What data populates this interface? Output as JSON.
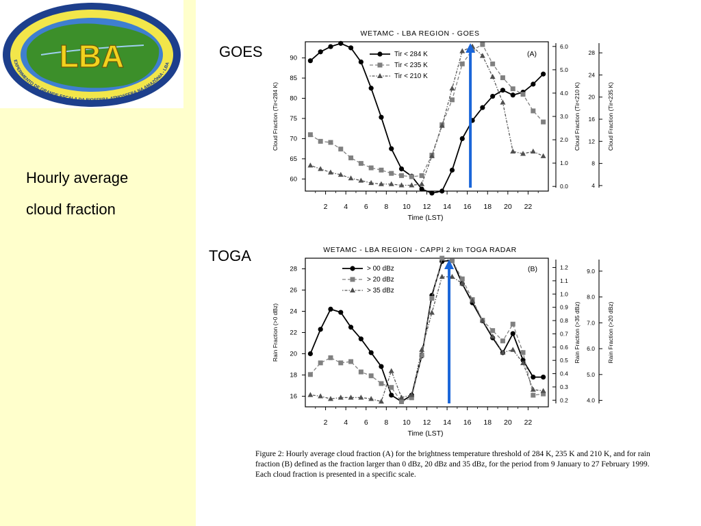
{
  "sidebar": {
    "logo_text": "LBA",
    "logo_ring_text": "EXPERIMENTO DE GRANDE ESCALA DA BIOSFERA-ATMOSFERA NA AMAZÔNIA - LBA",
    "heading_line1": "Hourly average",
    "heading_line2": "cloud fraction"
  },
  "labels": {
    "goes": "GOES",
    "toga": "TOGA"
  },
  "caption": "Figure 2: Hourly average cloud fraction (A) for the brightness temperature threshold of 284 K, 235 K and 210 K, and for rain fraction (B) defined as the fraction larger than 0 dBz, 20 dBz and 35 dBz, for the period from 9 January to 27 February 1999. Each cloud fraction is presented in a specific scale.",
  "colors": {
    "sidebar_bg": "#ffffcc",
    "arrow": "#1a66d9",
    "series1": "#000000",
    "series2": "#808080",
    "series3": "#606060"
  },
  "chart_data": [
    {
      "type": "line",
      "title": "WETAMC - LBA REGION - GOES",
      "panel_label": "(A)",
      "xlabel": "Time (LST)",
      "xlim": [
        0,
        24
      ],
      "xticks": [
        2,
        4,
        6,
        8,
        10,
        12,
        14,
        16,
        18,
        20,
        22
      ],
      "axes": [
        {
          "id": "left",
          "label": "Cloud Fraction (Tir<284 K)",
          "lim": [
            57,
            94
          ],
          "ticks": [
            60,
            65,
            70,
            75,
            80,
            85,
            90
          ],
          "tick_labels": [
            "60",
            "65",
            "70",
            "75",
            "80",
            "85",
            "90"
          ]
        },
        {
          "id": "mid",
          "label": "Cloud Fraction (Tir<210 K)",
          "lim": [
            -0.2,
            6.2
          ],
          "ticks": [
            0,
            1,
            2,
            3,
            4,
            5,
            6
          ],
          "tick_labels": [
            "0.0",
            "1.0",
            "2.0",
            "3.0",
            "4.0",
            "5.0",
            "6.0"
          ]
        },
        {
          "id": "right",
          "label": "Cloud Fraction (Tir<235 K)",
          "lim": [
            3,
            30
          ],
          "ticks": [
            4,
            8,
            12,
            16,
            20,
            24,
            28
          ],
          "tick_labels": [
            "4",
            "8",
            "12",
            "16",
            "20",
            "24",
            "28"
          ]
        }
      ],
      "arrow_x": 16.3,
      "series": [
        {
          "name": "Tir < 284 K",
          "axis": "left",
          "marker": "circle",
          "style": "solid",
          "x": [
            0.5,
            1.5,
            2.5,
            3.5,
            4.5,
            5.5,
            6.5,
            7.5,
            8.5,
            9.5,
            10.5,
            11.5,
            12.5,
            13.5,
            14.5,
            15.5,
            16.5,
            17.5,
            18.5,
            19.5,
            20.5,
            21.5,
            22.5,
            23.5
          ],
          "y": [
            89.3,
            91.5,
            92.8,
            93.6,
            92.5,
            89,
            82.5,
            75.3,
            67.5,
            62.5,
            60.7,
            57.5,
            56.5,
            57,
            62.2,
            70,
            74.5,
            77.7,
            80.5,
            82,
            80.8,
            81.5,
            83.5,
            86
          ]
        },
        {
          "name": "Tir < 235 K",
          "axis": "right",
          "marker": "square",
          "style": "dashed",
          "x": [
            0.5,
            1.5,
            2.5,
            3.5,
            4.5,
            5.5,
            6.5,
            7.5,
            8.5,
            9.5,
            10.5,
            11.5,
            12.5,
            13.5,
            14.5,
            15.5,
            16.5,
            17.5,
            18.5,
            19.5,
            20.5,
            21.5,
            22.5,
            23.5
          ],
          "y": [
            13.2,
            12,
            11.8,
            10.6,
            9,
            8,
            7.2,
            6.8,
            6.2,
            5.8,
            5.6,
            5.8,
            9.5,
            15,
            19.5,
            26,
            28.5,
            29.5,
            26,
            23.5,
            21.5,
            20.5,
            17.5,
            15.5
          ]
        },
        {
          "name": "Tir < 210 K",
          "axis": "mid",
          "marker": "triangle",
          "style": "dotdash",
          "x": [
            0.5,
            1.5,
            2.5,
            3.5,
            4.5,
            5.5,
            6.5,
            7.5,
            8.5,
            9.5,
            10.5,
            11.5,
            12.5,
            13.5,
            14.5,
            15.5,
            16.5,
            17.5,
            18.5,
            19.5,
            20.5,
            21.5,
            22.5,
            23.5
          ],
          "y": [
            0.9,
            0.75,
            0.6,
            0.5,
            0.35,
            0.25,
            0.15,
            0.1,
            0.1,
            0.05,
            0.05,
            0.1,
            1.3,
            2.6,
            4.2,
            5.8,
            6.0,
            5.6,
            4.7,
            3.6,
            1.5,
            1.4,
            1.5,
            1.3
          ]
        }
      ]
    },
    {
      "type": "line",
      "title": "WETAMC - LBA REGION - CAPPI 2 km TOGA RADAR",
      "panel_label": "(B)",
      "xlabel": "Time (LST)",
      "xlim": [
        0,
        24
      ],
      "xticks": [
        2,
        4,
        6,
        8,
        10,
        12,
        14,
        16,
        18,
        20,
        22
      ],
      "axes": [
        {
          "id": "left",
          "label": "Rain Fraction (>0 dBz)",
          "lim": [
            15,
            29
          ],
          "ticks": [
            16,
            18,
            20,
            22,
            24,
            26,
            28
          ],
          "tick_labels": [
            "16",
            "18",
            "20",
            "22",
            "24",
            "26",
            "28"
          ]
        },
        {
          "id": "mid",
          "label": "Rain Fraction (>35 dBz)",
          "lim": [
            0.15,
            1.27
          ],
          "ticks": [
            0.2,
            0.3,
            0.4,
            0.5,
            0.6,
            0.7,
            0.8,
            0.9,
            1.0,
            1.1,
            1.2
          ],
          "tick_labels": [
            "0.2",
            "0.3",
            "0.4",
            "0.5",
            "0.6",
            "0.7",
            "0.8",
            "0.9",
            "1.0",
            "1.1",
            "1.2"
          ]
        },
        {
          "id": "right",
          "label": "Rain Fraction (>20 dBz)",
          "lim": [
            3.75,
            9.5
          ],
          "ticks": [
            4,
            5,
            6,
            7,
            8,
            9
          ],
          "tick_labels": [
            "4.0",
            "5.0",
            "6.0",
            "7.0",
            "8.0",
            "9.0"
          ]
        }
      ],
      "arrow_x": 14.2,
      "series": [
        {
          "name": "> 00 dBz",
          "axis": "left",
          "marker": "circle",
          "style": "solid",
          "x": [
            0.5,
            1.5,
            2.5,
            3.5,
            4.5,
            5.5,
            6.5,
            7.5,
            8.5,
            9.5,
            10.5,
            11.5,
            12.5,
            13.5,
            14.5,
            15.5,
            16.5,
            17.5,
            18.5,
            19.5,
            20.5,
            21.5,
            22.5,
            23.5
          ],
          "y": [
            20,
            22.3,
            24.2,
            23.9,
            22.5,
            21.4,
            20.1,
            18.8,
            16.1,
            15.5,
            16.1,
            19.8,
            25.5,
            28.7,
            28.8,
            26.6,
            24.8,
            23.1,
            21.5,
            20.1,
            21.9,
            19.4,
            17.8,
            17.8
          ]
        },
        {
          "name": "> 20 dBz",
          "axis": "right",
          "marker": "square",
          "style": "dashed",
          "x": [
            0.5,
            1.5,
            2.5,
            3.5,
            4.5,
            5.5,
            6.5,
            7.5,
            8.5,
            9.5,
            10.5,
            11.5,
            12.5,
            13.5,
            14.5,
            15.5,
            16.5,
            17.5,
            18.5,
            19.5,
            20.5,
            21.5,
            22.5,
            23.5
          ],
          "y": [
            5.0,
            5.45,
            5.65,
            5.45,
            5.5,
            5.1,
            4.95,
            4.65,
            4.5,
            3.95,
            4.1,
            5.75,
            7.95,
            9.5,
            9.4,
            8.7,
            7.9,
            7.1,
            6.7,
            6.3,
            6.95,
            5.85,
            4.2,
            4.25
          ]
        },
        {
          "name": "> 35 dBz",
          "axis": "mid",
          "marker": "triangle",
          "style": "dotdash",
          "x": [
            0.5,
            1.5,
            2.5,
            3.5,
            4.5,
            5.5,
            6.5,
            7.5,
            8.5,
            9.5,
            10.5,
            11.5,
            12.5,
            13.5,
            14.5,
            15.5,
            16.5,
            17.5,
            18.5,
            19.5,
            20.5,
            21.5,
            22.5,
            23.5
          ],
          "y": [
            0.24,
            0.23,
            0.21,
            0.22,
            0.22,
            0.22,
            0.21,
            0.19,
            0.42,
            0.22,
            0.24,
            0.58,
            0.86,
            1.13,
            1.13,
            1.08,
            0.95,
            0.8,
            0.68,
            0.56,
            0.58,
            0.48,
            0.28,
            0.27
          ]
        }
      ]
    }
  ]
}
